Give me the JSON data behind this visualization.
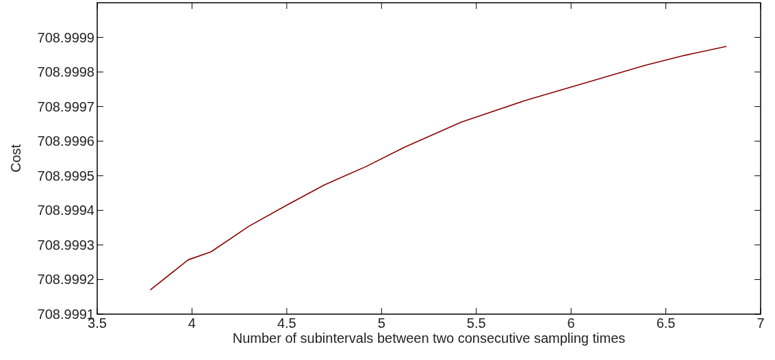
{
  "chart_data": {
    "type": "line",
    "xlabel": "Number of subintervals between two consecutive sampling times",
    "ylabel": "Cost",
    "xlim": [
      3.5,
      7
    ],
    "xticks": [
      3.5,
      4,
      4.5,
      5,
      5.5,
      6,
      6.5,
      7
    ],
    "ylim": [
      708.9991,
      709.0
    ],
    "yticks": [
      708.9991,
      708.9992,
      708.9993,
      708.9994,
      708.9995,
      708.9996,
      708.9997,
      708.9998,
      708.9999
    ],
    "grid": false,
    "series": [
      {
        "color": "#8b0000",
        "x": [
          3.78,
          3.98,
          4.1,
          4.3,
          4.5,
          4.7,
          4.92,
          5.12,
          5.42,
          5.75,
          6.39,
          6.6,
          6.82
        ],
        "values": [
          708.99917,
          708.999257,
          708.99928,
          708.999354,
          708.999415,
          708.999474,
          708.999527,
          708.999582,
          708.999655,
          708.999716,
          708.999819,
          708.999848,
          708.999874
        ]
      }
    ]
  }
}
